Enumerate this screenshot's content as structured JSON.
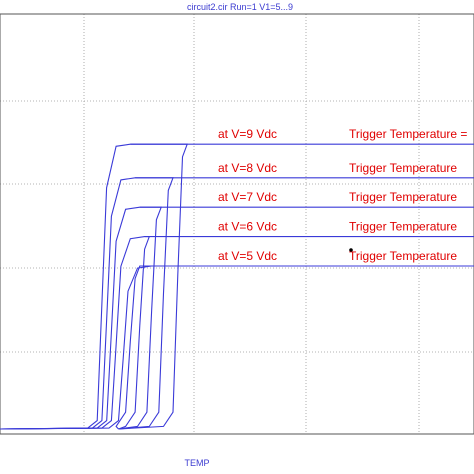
{
  "chart_data": {
    "type": "line",
    "title": "circuit2.cir Run=1 V1=5...9",
    "xlabel": "TEMP",
    "ylabel": "",
    "grid": true,
    "x_ticks": 5,
    "y_ticks": 6,
    "series": [
      {
        "name": "at V=5 Vdc",
        "label": "at V=5 Vdc",
        "trigger_label": "Trigger Temperature",
        "rise_start": 0.25,
        "rise_end": 0.285,
        "level": 0.4
      },
      {
        "name": "at V=6 Vdc",
        "label": "at V=6 Vdc",
        "trigger_label": "Trigger Temperature",
        "rise_start": 0.235,
        "rise_end": 0.305,
        "level": 0.47
      },
      {
        "name": "at V=7 Vdc",
        "label": "at V=7 Vdc",
        "trigger_label": "Trigger Temperature",
        "rise_start": 0.225,
        "rise_end": 0.33,
        "level": 0.54
      },
      {
        "name": "at V=8 Vdc",
        "label": "at V=8 Vdc",
        "trigger_label": "Trigger Temperature",
        "rise_start": 0.215,
        "rise_end": 0.355,
        "level": 0.61
      },
      {
        "name": "at V=9 Vdc",
        "label": "at V=9 Vdc",
        "trigger_label": "Trigger Temperature =",
        "rise_start": 0.205,
        "rise_end": 0.385,
        "level": 0.69
      }
    ],
    "colors": {
      "curve": "#3a3ad8",
      "annotation": "#e00000",
      "axis_text": "#3b3bd0"
    }
  }
}
